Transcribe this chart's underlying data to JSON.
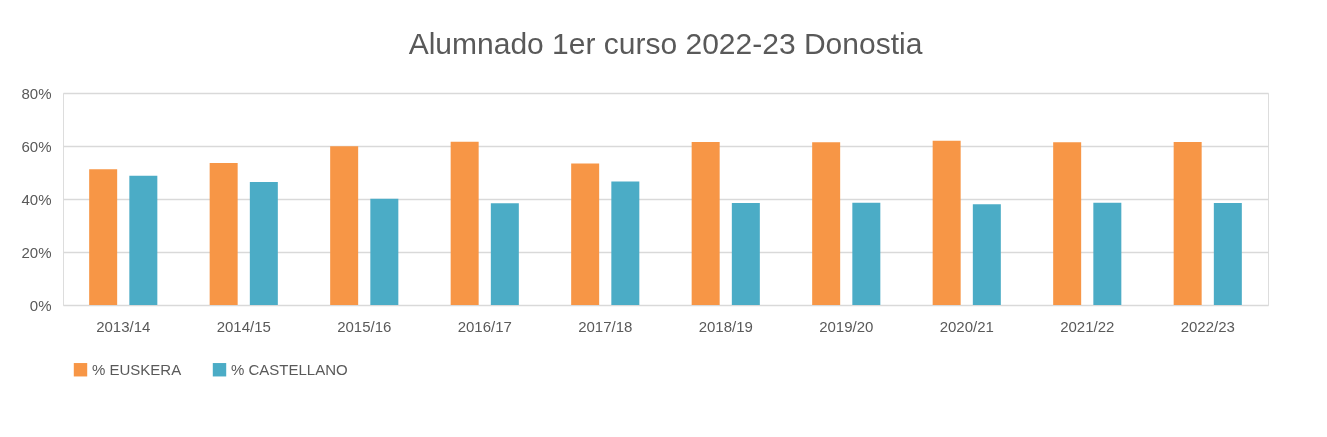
{
  "chart_data": {
    "type": "bar",
    "title": "Alumnado 1er curso 2022-23 Donostia",
    "categories": [
      "2013/14",
      "2014/15",
      "2015/16",
      "2016/17",
      "2017/18",
      "2018/19",
      "2019/20",
      "2020/21",
      "2021/22",
      "2022/23"
    ],
    "series": [
      {
        "name": "% EUSKERA",
        "color": "#f79646",
        "values": [
          51.2,
          53.6,
          59.9,
          61.6,
          53.4,
          61.5,
          61.4,
          62.0,
          61.4,
          61.5
        ]
      },
      {
        "name": "% CASTELLANO",
        "color": "#4bacc6",
        "values": [
          48.8,
          46.4,
          40.1,
          38.4,
          46.6,
          38.5,
          38.6,
          38.0,
          38.6,
          38.5
        ]
      }
    ],
    "ylim": [
      0,
      80
    ],
    "yticks": [
      {
        "value": 0,
        "label": "0%"
      },
      {
        "value": 20,
        "label": "20%"
      },
      {
        "value": 40,
        "label": "40%"
      },
      {
        "value": 60,
        "label": "60%"
      },
      {
        "value": 80,
        "label": "80%"
      }
    ],
    "grid": "y",
    "legend": "bottom"
  }
}
